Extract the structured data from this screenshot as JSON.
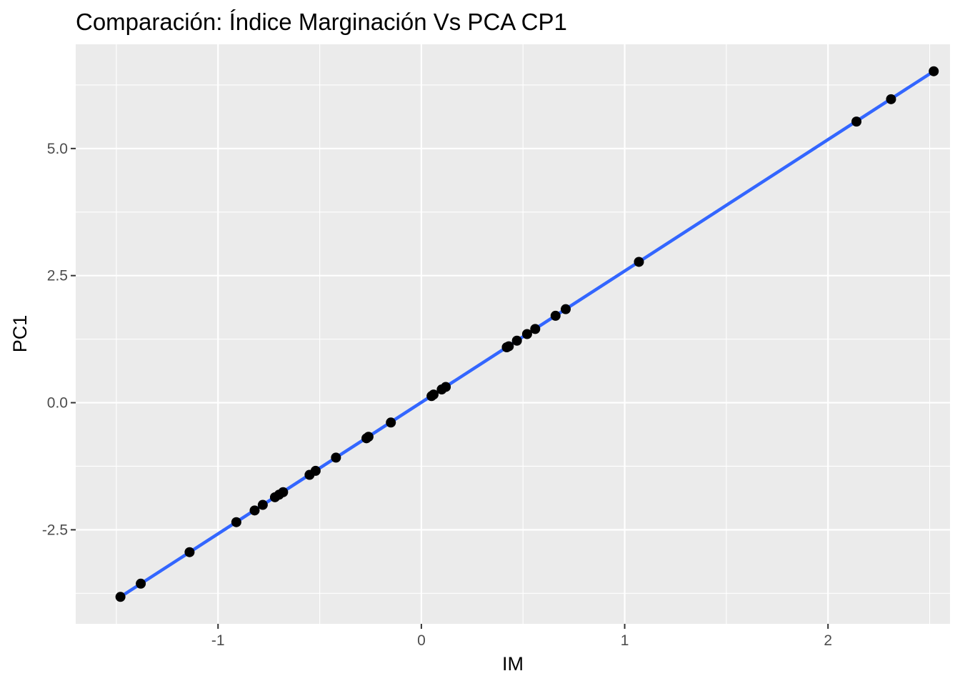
{
  "chart_data": {
    "type": "scatter",
    "title": "Comparación: Índice Marginación Vs PCA CP1",
    "xlabel": "IM",
    "ylabel": "PC1",
    "xlim": [
      -1.7,
      2.6
    ],
    "ylim": [
      -4.35,
      7.05
    ],
    "x_ticks": [
      -1,
      0,
      1,
      2
    ],
    "x_tick_labels": [
      "-1",
      "0",
      "1",
      "2"
    ],
    "x_minor": [
      -1.5,
      -0.5,
      0.5,
      1.5,
      2.5
    ],
    "y_ticks": [
      -2.5,
      0.0,
      2.5,
      5.0
    ],
    "y_tick_labels": [
      "-2.5",
      "0.0",
      "2.5",
      "5.0"
    ],
    "y_minor": [
      -3.75,
      -1.25,
      1.25,
      3.75,
      6.25
    ],
    "grid": true,
    "background": "#ebebeb",
    "grid_color": "#ffffff",
    "point_color": "#000000",
    "line_color": "#3366ff",
    "fit_line": {
      "x": [
        -1.48,
        2.52
      ],
      "y": [
        -3.82,
        6.52
      ]
    },
    "points": [
      {
        "x": -1.48,
        "y": -3.82
      },
      {
        "x": -1.38,
        "y": -3.56
      },
      {
        "x": -1.14,
        "y": -2.94
      },
      {
        "x": -0.91,
        "y": -2.35
      },
      {
        "x": -0.82,
        "y": -2.12
      },
      {
        "x": -0.78,
        "y": -2.01
      },
      {
        "x": -0.72,
        "y": -1.86
      },
      {
        "x": -0.7,
        "y": -1.81
      },
      {
        "x": -0.68,
        "y": -1.76
      },
      {
        "x": -0.55,
        "y": -1.42
      },
      {
        "x": -0.52,
        "y": -1.34
      },
      {
        "x": -0.42,
        "y": -1.08
      },
      {
        "x": -0.27,
        "y": -0.7
      },
      {
        "x": -0.26,
        "y": -0.67
      },
      {
        "x": -0.15,
        "y": -0.39
      },
      {
        "x": 0.05,
        "y": 0.13
      },
      {
        "x": 0.06,
        "y": 0.16
      },
      {
        "x": 0.1,
        "y": 0.26
      },
      {
        "x": 0.12,
        "y": 0.31
      },
      {
        "x": 0.42,
        "y": 1.09
      },
      {
        "x": 0.43,
        "y": 1.11
      },
      {
        "x": 0.47,
        "y": 1.22
      },
      {
        "x": 0.52,
        "y": 1.35
      },
      {
        "x": 0.56,
        "y": 1.45
      },
      {
        "x": 0.66,
        "y": 1.71
      },
      {
        "x": 0.71,
        "y": 1.84
      },
      {
        "x": 1.07,
        "y": 2.77
      },
      {
        "x": 2.14,
        "y": 5.53
      },
      {
        "x": 2.31,
        "y": 5.97
      },
      {
        "x": 2.52,
        "y": 6.52
      }
    ]
  }
}
